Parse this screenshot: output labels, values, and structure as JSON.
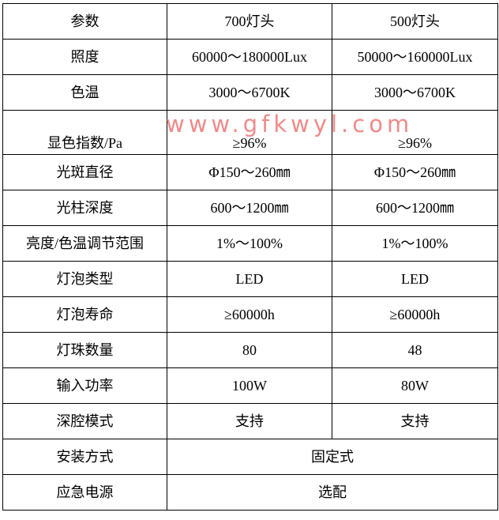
{
  "header": [
    "参数",
    "700灯头",
    "500灯头"
  ],
  "rows": [
    [
      "照度",
      "60000～180000Lux",
      "50000～160000Lux"
    ],
    [
      "色温",
      "3000～6700K",
      "3000～6700K"
    ],
    [
      "显色指数/Pa",
      "≥96%",
      "≥96%"
    ],
    [
      "光斑直径",
      "Φ150～260㎜",
      "Φ150～260㎜"
    ],
    [
      "光柱深度",
      "600～1200㎜",
      "600～1200㎜"
    ],
    [
      "亮度/色温调节范围",
      "1%～100%",
      "1%～100%"
    ],
    [
      "灯泡类型",
      "LED",
      "LED"
    ],
    [
      "灯泡寿命",
      "≥60000h",
      "≥60000h"
    ],
    [
      "灯珠数量",
      "80",
      "48"
    ],
    [
      "输入功率",
      "100W",
      "80W"
    ],
    [
      "深腔模式",
      "支持",
      "支持"
    ]
  ],
  "merged_rows": [
    [
      "安装方式",
      "固定式"
    ],
    [
      "应急电源",
      "选配"
    ]
  ],
  "watermark": "www.gfkwyl.com"
}
